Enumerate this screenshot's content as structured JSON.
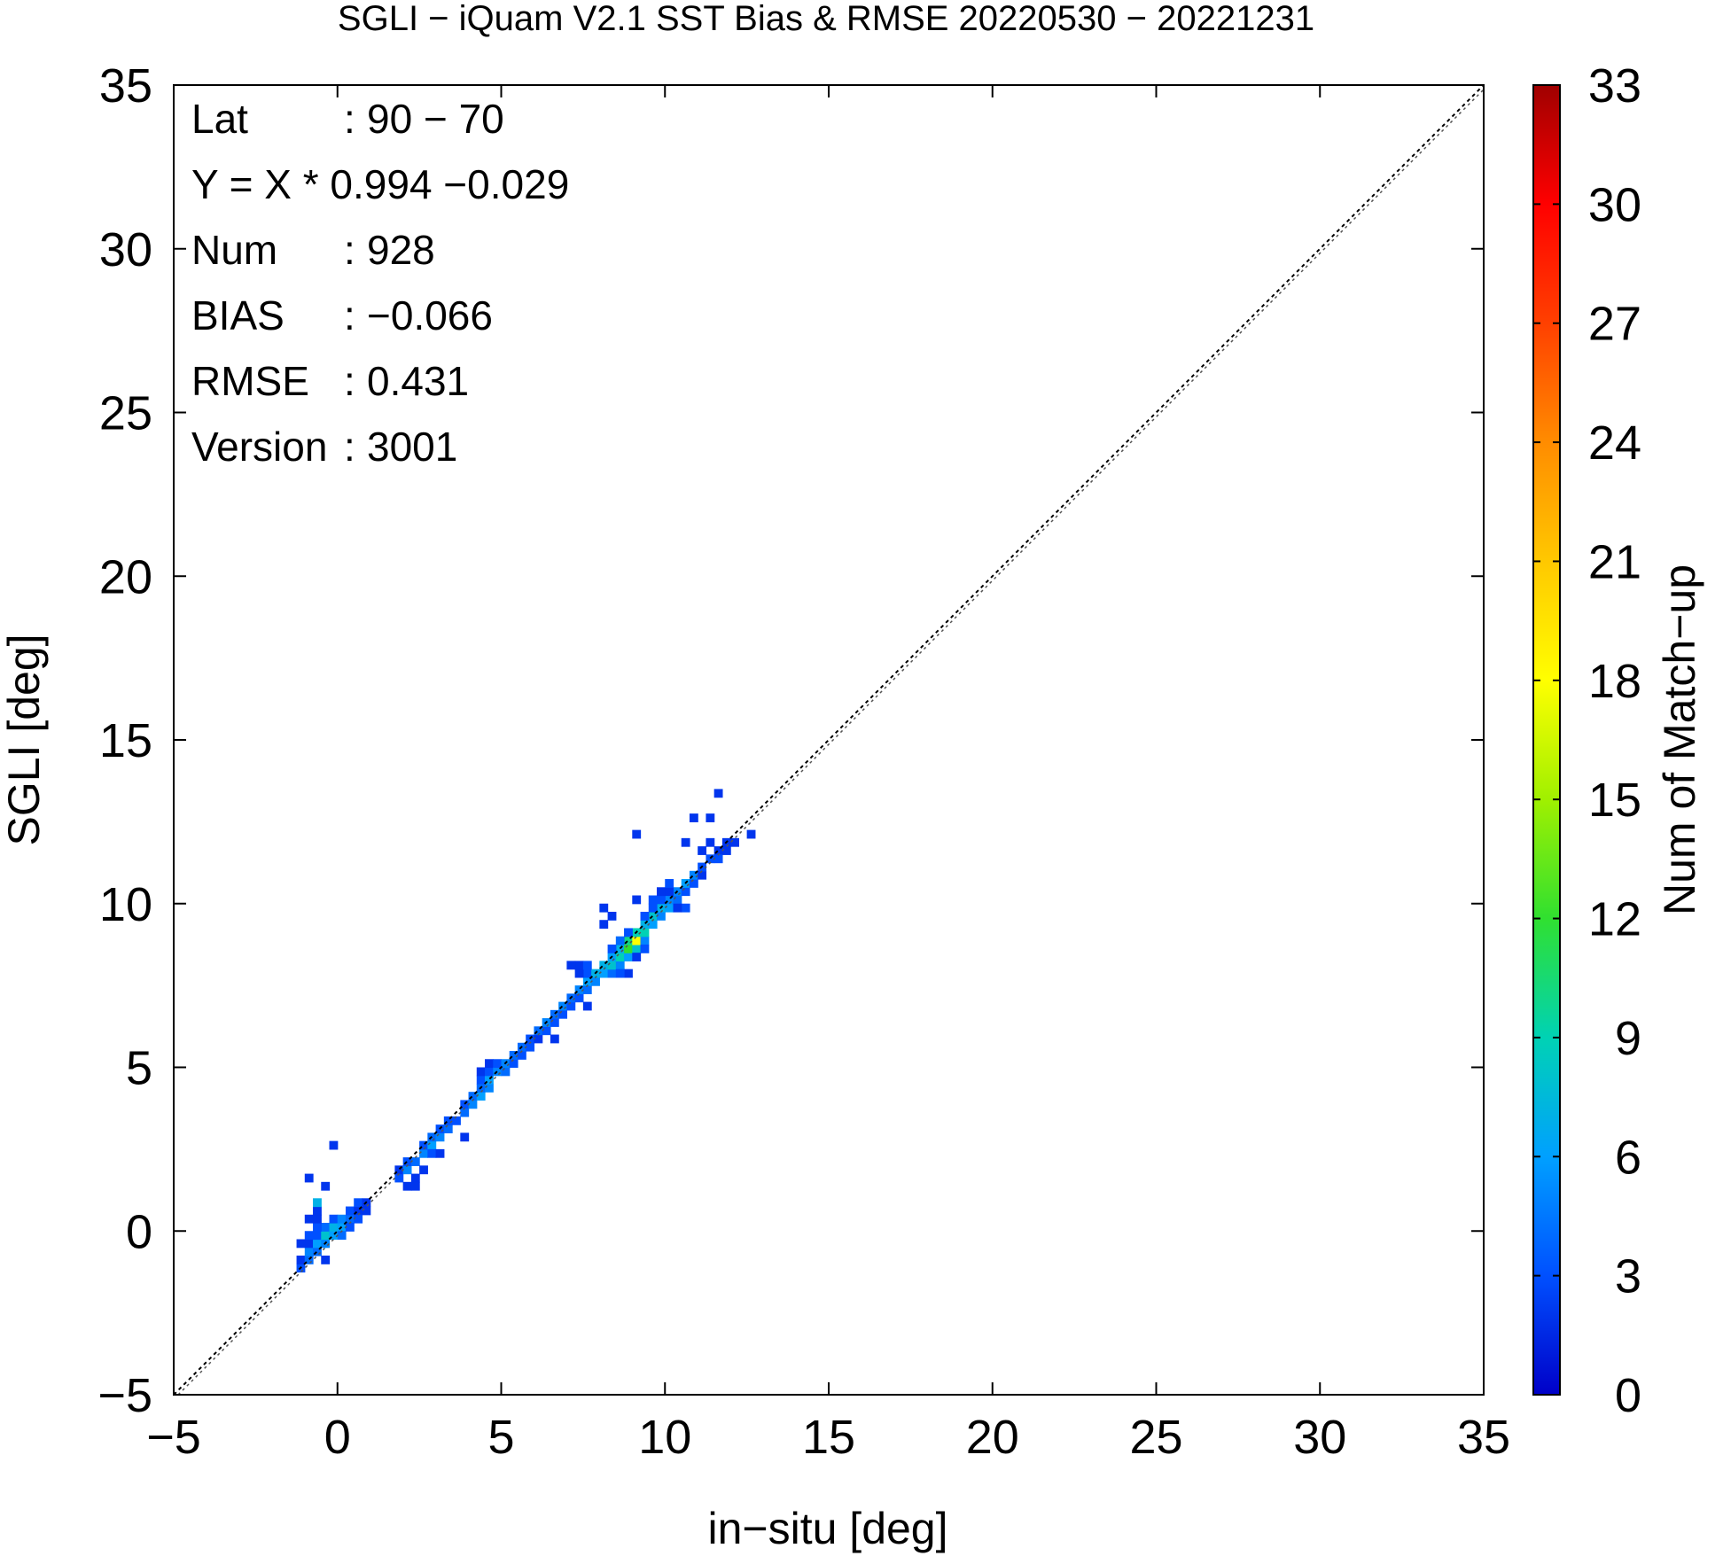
{
  "chart_data": {
    "type": "heatmap",
    "title": "SGLI − iQuam V2.1 SST Bias & RMSE 20220530 − 20221231",
    "xlabel": "in−situ [deg]",
    "ylabel": "SGLI [deg]",
    "xlim": [
      -5,
      35
    ],
    "ylim": [
      -5,
      35
    ],
    "xticks": [
      -5,
      0,
      5,
      10,
      15,
      20,
      25,
      30,
      35
    ],
    "yticks": [
      -5,
      0,
      5,
      10,
      15,
      20,
      25,
      30,
      35
    ],
    "xtick_labels": [
      "−5",
      "0",
      "5",
      "10",
      "15",
      "20",
      "25",
      "30",
      "35"
    ],
    "ytick_labels": [
      "−5",
      "0",
      "5",
      "10",
      "15",
      "20",
      "25",
      "30",
      "35"
    ],
    "grid": false,
    "reference_line": "y = x",
    "colorbar": {
      "label": "Num of Match−up",
      "range": [
        0,
        33
      ],
      "ticks": [
        0,
        3,
        6,
        9,
        12,
        15,
        18,
        21,
        24,
        27,
        30,
        33
      ],
      "colors": [
        "#0000c8",
        "#0050ff",
        "#00a0ff",
        "#00d2b4",
        "#30e030",
        "#a0f000",
        "#ffff00",
        "#ffc800",
        "#ff8c00",
        "#ff4000",
        "#ff0000",
        "#a00000"
      ]
    },
    "stats": [
      {
        "key": "Lat",
        "sep": ":",
        "value": "90 − 70"
      },
      {
        "key": "Y = X * 0.994 −0.029",
        "sep": "",
        "value": ""
      },
      {
        "key": "Num",
        "sep": ":",
        "value": "928"
      },
      {
        "key": "BIAS",
        "sep": ":",
        "value": "−0.066"
      },
      {
        "key": "RMSE",
        "sep": ":",
        "value": "0.431"
      },
      {
        "key": "Version",
        "sep": ":",
        "value": "3001"
      }
    ],
    "bin_size": 0.25,
    "cells": [
      [
        -1.25,
        -1.25,
        3
      ],
      [
        -1.25,
        -1.0,
        2
      ],
      [
        -1.0,
        -1.0,
        4
      ],
      [
        -1.0,
        -0.75,
        5
      ],
      [
        -1.0,
        -0.5,
        2
      ],
      [
        -0.75,
        -0.75,
        4
      ],
      [
        -0.75,
        -0.5,
        6
      ],
      [
        -0.75,
        -0.25,
        3
      ],
      [
        -1.25,
        -0.5,
        2
      ],
      [
        -1.0,
        -0.25,
        3
      ],
      [
        -0.5,
        -1.0,
        2
      ],
      [
        -0.5,
        -0.5,
        5
      ],
      [
        -0.5,
        -0.25,
        8
      ],
      [
        -0.5,
        0.0,
        4
      ],
      [
        -0.25,
        -0.25,
        6
      ],
      [
        -0.25,
        0.0,
        7
      ],
      [
        -0.25,
        0.25,
        3
      ],
      [
        0.0,
        0.0,
        6
      ],
      [
        0.0,
        -0.25,
        4
      ],
      [
        0.0,
        0.25,
        5
      ],
      [
        0.25,
        0.25,
        4
      ],
      [
        0.25,
        0.5,
        3
      ],
      [
        0.5,
        0.5,
        2
      ],
      [
        0.5,
        0.75,
        3
      ],
      [
        0.75,
        0.75,
        2
      ],
      [
        -0.75,
        0.0,
        3
      ],
      [
        -0.75,
        0.25,
        2
      ],
      [
        -0.75,
        0.5,
        2
      ],
      [
        -1.0,
        0.25,
        2
      ],
      [
        -0.75,
        0.75,
        7
      ],
      [
        -1.0,
        1.5,
        2
      ],
      [
        -0.25,
        2.5,
        2
      ],
      [
        -0.5,
        1.25,
        2
      ],
      [
        0.25,
        0.0,
        3
      ],
      [
        0.5,
        0.25,
        3
      ],
      [
        0.75,
        0.5,
        2
      ],
      [
        1.75,
        1.5,
        3
      ],
      [
        1.75,
        1.75,
        2
      ],
      [
        2.0,
        1.75,
        5
      ],
      [
        2.0,
        2.0,
        3
      ],
      [
        2.0,
        1.25,
        2
      ],
      [
        2.25,
        2.0,
        4
      ],
      [
        2.25,
        1.5,
        2
      ],
      [
        2.5,
        2.25,
        5
      ],
      [
        2.5,
        2.5,
        3
      ],
      [
        2.5,
        1.75,
        2
      ],
      [
        2.75,
        2.5,
        6
      ],
      [
        2.75,
        2.75,
        4
      ],
      [
        2.75,
        2.25,
        3
      ],
      [
        3.0,
        2.75,
        5
      ],
      [
        3.0,
        3.0,
        3
      ],
      [
        3.0,
        2.25,
        2
      ],
      [
        3.25,
        3.0,
        4
      ],
      [
        3.25,
        3.25,
        3
      ],
      [
        2.25,
        1.25,
        2
      ],
      [
        3.5,
        3.25,
        3
      ],
      [
        3.75,
        3.5,
        4
      ],
      [
        3.75,
        3.75,
        3
      ],
      [
        4.0,
        3.75,
        5
      ],
      [
        4.0,
        4.0,
        4
      ],
      [
        3.75,
        2.75,
        2
      ],
      [
        4.25,
        4.0,
        6
      ],
      [
        4.25,
        4.25,
        4
      ],
      [
        4.25,
        4.5,
        3
      ],
      [
        4.25,
        4.75,
        2
      ],
      [
        4.5,
        4.25,
        5
      ],
      [
        4.5,
        4.5,
        6
      ],
      [
        4.5,
        4.75,
        3
      ],
      [
        4.5,
        5.0,
        2
      ],
      [
        4.75,
        4.75,
        5
      ],
      [
        4.75,
        5.0,
        3
      ],
      [
        5.0,
        4.75,
        4
      ],
      [
        5.0,
        5.0,
        5
      ],
      [
        5.25,
        5.0,
        3
      ],
      [
        5.25,
        5.25,
        4
      ],
      [
        5.5,
        5.25,
        3
      ],
      [
        5.5,
        5.5,
        4
      ],
      [
        5.75,
        5.5,
        3
      ],
      [
        5.75,
        5.75,
        3
      ],
      [
        6.0,
        5.75,
        2
      ],
      [
        6.0,
        6.0,
        4
      ],
      [
        6.25,
        6.0,
        3
      ],
      [
        6.25,
        6.25,
        5
      ],
      [
        6.5,
        6.25,
        3
      ],
      [
        6.5,
        6.5,
        4
      ],
      [
        6.75,
        6.5,
        3
      ],
      [
        6.75,
        6.75,
        5
      ],
      [
        7.0,
        6.75,
        3
      ],
      [
        6.5,
        5.75,
        2
      ],
      [
        7.0,
        7.0,
        4
      ],
      [
        7.25,
        7.0,
        3
      ],
      [
        7.25,
        7.25,
        5
      ],
      [
        7.5,
        7.25,
        4
      ],
      [
        7.5,
        7.5,
        6
      ],
      [
        7.5,
        7.75,
        3
      ],
      [
        7.75,
        7.5,
        5
      ],
      [
        7.75,
        7.75,
        7
      ],
      [
        7.25,
        7.75,
        2
      ],
      [
        7.25,
        8.0,
        2
      ],
      [
        7.0,
        8.0,
        2
      ],
      [
        7.5,
        8.0,
        3
      ],
      [
        7.5,
        6.75,
        2
      ],
      [
        8.0,
        7.75,
        6
      ],
      [
        8.0,
        8.0,
        7
      ],
      [
        8.25,
        7.75,
        4
      ],
      [
        8.25,
        8.0,
        8
      ],
      [
        8.25,
        8.25,
        6
      ],
      [
        8.5,
        8.0,
        5
      ],
      [
        8.5,
        8.25,
        9
      ],
      [
        8.5,
        8.5,
        7
      ],
      [
        8.75,
        8.25,
        6
      ],
      [
        8.75,
        8.5,
        12
      ],
      [
        8.75,
        8.75,
        10
      ],
      [
        9.0,
        8.5,
        8
      ],
      [
        9.0,
        8.75,
        18
      ],
      [
        9.0,
        9.0,
        9
      ],
      [
        9.25,
        8.75,
        5
      ],
      [
        9.25,
        9.0,
        9
      ],
      [
        9.25,
        9.25,
        7
      ],
      [
        9.5,
        9.25,
        6
      ],
      [
        9.5,
        9.5,
        8
      ],
      [
        9.75,
        9.5,
        5
      ],
      [
        9.75,
        9.75,
        7
      ],
      [
        10.0,
        9.75,
        6
      ],
      [
        10.0,
        10.0,
        5
      ],
      [
        10.25,
        10.0,
        4
      ],
      [
        10.25,
        10.25,
        5
      ],
      [
        10.5,
        10.25,
        3
      ],
      [
        10.5,
        10.5,
        6
      ],
      [
        10.75,
        10.5,
        3
      ],
      [
        10.75,
        10.75,
        5
      ],
      [
        11.0,
        10.75,
        2
      ],
      [
        11.0,
        11.0,
        3
      ],
      [
        8.25,
        8.5,
        3
      ],
      [
        8.5,
        8.75,
        4
      ],
      [
        8.75,
        9.0,
        3
      ],
      [
        9.25,
        9.5,
        3
      ],
      [
        9.5,
        9.75,
        3
      ],
      [
        9.5,
        10.0,
        3
      ],
      [
        9.75,
        10.0,
        3
      ],
      [
        9.75,
        10.25,
        2
      ],
      [
        10.0,
        10.25,
        2
      ],
      [
        10.0,
        10.5,
        3
      ],
      [
        8.0,
        9.25,
        2
      ],
      [
        8.0,
        9.75,
        2
      ],
      [
        8.25,
        9.5,
        2
      ],
      [
        9.0,
        10.0,
        2
      ],
      [
        8.75,
        7.75,
        2
      ],
      [
        8.5,
        7.75,
        3
      ],
      [
        9.25,
        8.5,
        3
      ],
      [
        9.0,
        8.25,
        2
      ],
      [
        10.5,
        9.75,
        3
      ],
      [
        10.25,
        9.75,
        2
      ],
      [
        11.25,
        11.25,
        3
      ],
      [
        11.5,
        11.5,
        2
      ],
      [
        11.5,
        11.25,
        3
      ],
      [
        11.75,
        11.75,
        2
      ],
      [
        11.75,
        11.5,
        2
      ],
      [
        12.0,
        11.75,
        2
      ],
      [
        12.5,
        12.0,
        2
      ],
      [
        10.75,
        12.5,
        2
      ],
      [
        11.25,
        12.5,
        2
      ],
      [
        11.5,
        13.25,
        2
      ],
      [
        11.25,
        11.75,
        2
      ],
      [
        11.0,
        11.5,
        2
      ],
      [
        9.0,
        12.0,
        2
      ],
      [
        10.5,
        11.75,
        2
      ]
    ]
  }
}
